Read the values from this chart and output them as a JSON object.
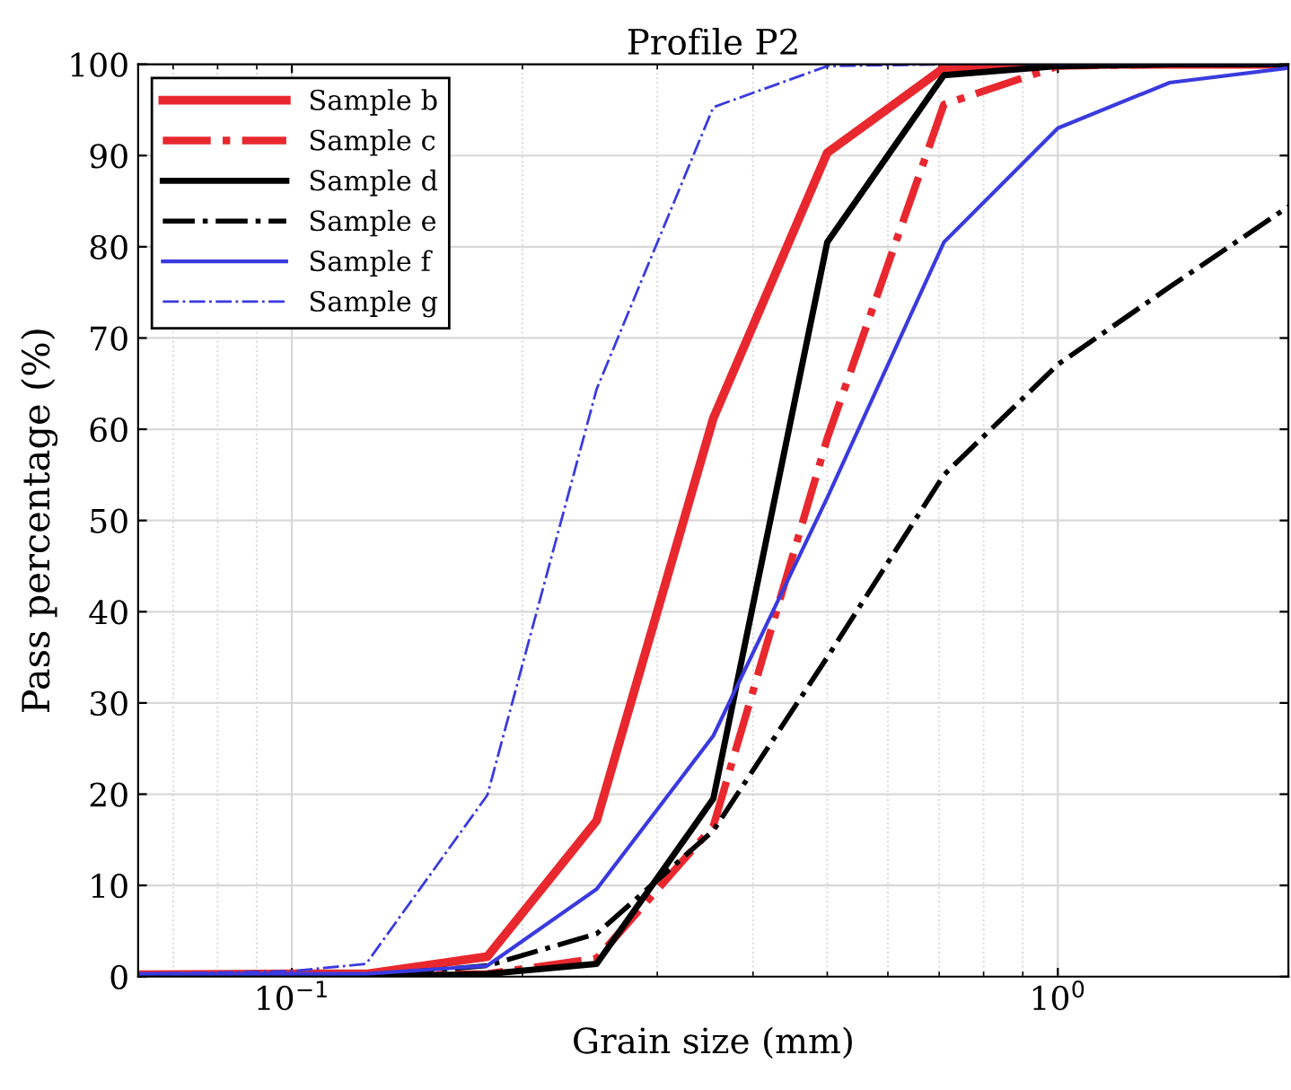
{
  "chart_data": {
    "type": "line",
    "title": "Profile P2",
    "xlabel": "Grain size (mm)",
    "ylabel": "Pass percentage (%)",
    "x": [
      0.063,
      0.1,
      0.125,
      0.18,
      0.25,
      0.355,
      0.5,
      0.71,
      1,
      1.4,
      2
    ],
    "series": [
      {
        "name": "Sample b",
        "color": "#e8282e",
        "line_style": "solid",
        "values": [
          0.2,
          0.3,
          0.3,
          2.2,
          17.1,
          61.2,
          90.3,
          99.6,
          100,
          100,
          100
        ]
      },
      {
        "name": "Sample c",
        "color": "#e8282e",
        "line_style": "dashdot",
        "values": [
          0,
          0,
          0.1,
          0.3,
          2,
          16.5,
          59,
          95.6,
          99.8,
          100,
          100
        ]
      },
      {
        "name": "Sample d",
        "color": "#000000",
        "line_style": "solid",
        "values": [
          0,
          0,
          0,
          0.3,
          1.4,
          19.5,
          80.5,
          98.8,
          99.8,
          100,
          100
        ]
      },
      {
        "name": "Sample e",
        "color": "#000000",
        "line_style": "dashdot",
        "values": [
          0,
          0,
          0.1,
          1.2,
          4.7,
          16,
          35,
          55,
          67.1,
          75.6,
          84.4
        ]
      },
      {
        "name": "Sample f",
        "color": "#3a3adf",
        "line_style": "solid",
        "values": [
          0.3,
          0.3,
          0.3,
          1.2,
          9.6,
          26.4,
          52.5,
          80.5,
          93,
          98,
          99.6
        ]
      },
      {
        "name": "Sample g",
        "color": "#3a3adf",
        "line_style": "dashdot",
        "values": [
          0.3,
          0.6,
          1.4,
          19.9,
          64.4,
          95.3,
          99.8,
          100,
          100,
          100,
          100
        ]
      }
    ],
    "log": "x",
    "xlim": [
      0.063,
      2
    ],
    "xticks": [
      {
        "value": 0.1,
        "label": "10$^{−1}$"
      },
      {
        "value": 1,
        "label": "10$^{0}$"
      }
    ],
    "ylim": [
      0,
      100
    ],
    "yticks": [
      0,
      10,
      20,
      30,
      40,
      50,
      60,
      70,
      80,
      90,
      100
    ],
    "grid": true,
    "legend": "top left",
    "marker": "none"
  }
}
